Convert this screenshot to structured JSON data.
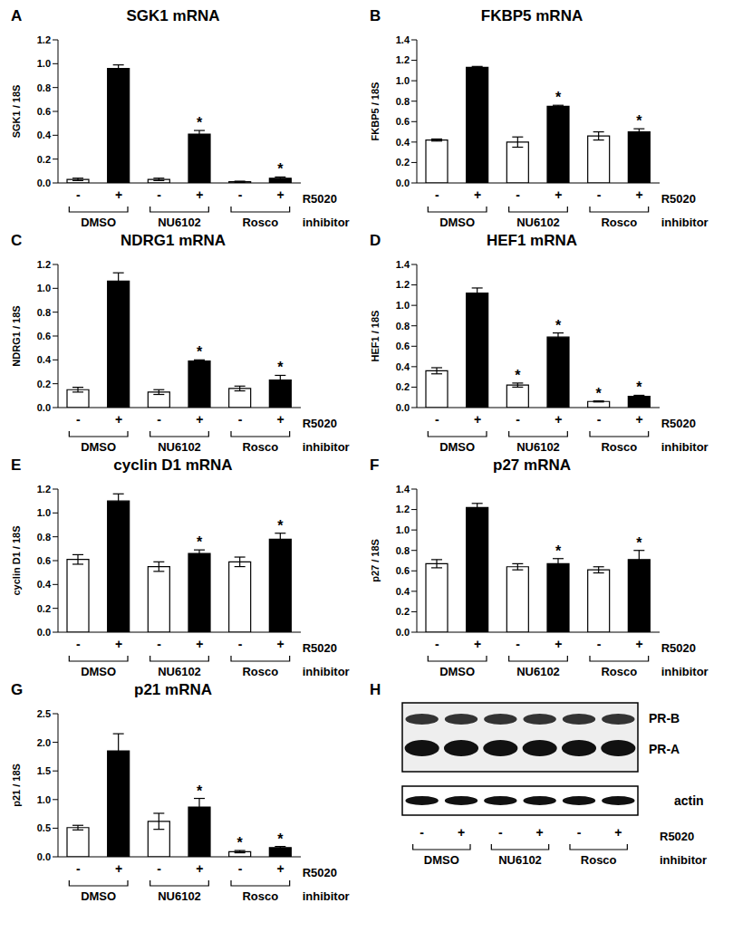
{
  "chart_data": [
    {
      "panel": "A",
      "type": "bar",
      "title": "SGK1 mRNA",
      "ylabel": "SGK1 / 18S",
      "categories": [
        "-",
        "+",
        "-",
        "+",
        "-",
        "+"
      ],
      "groups": [
        "DMSO",
        "NU6102",
        "Rosco"
      ],
      "row_labels": [
        "R5020",
        "inhibitor"
      ],
      "values": [
        0.03,
        0.96,
        0.03,
        0.41,
        0.01,
        0.04
      ],
      "errors": [
        0.01,
        0.03,
        0.01,
        0.03,
        0.005,
        0.01
      ],
      "annotations": [
        null,
        null,
        null,
        "*",
        null,
        "*"
      ],
      "colors": [
        "#ffffff",
        "#000000",
        "#ffffff",
        "#000000",
        "#ffffff",
        "#000000"
      ],
      "ylim": [
        0,
        1.2
      ],
      "yticks": [
        {
          "value": 0,
          "label": "0.0"
        },
        0.2,
        0.4,
        0.6,
        0.8,
        {
          "value": 1,
          "label": "1.0"
        },
        1.2
      ],
      "grid": false
    },
    {
      "panel": "B",
      "type": "bar",
      "title": "FKBP5 mRNA",
      "ylabel": "FKBP5 / 18S",
      "categories": [
        "-",
        "+",
        "-",
        "+",
        "-",
        "+"
      ],
      "groups": [
        "DMSO",
        "NU6102",
        "Rosco"
      ],
      "row_labels": [
        "R5020",
        "inhibitor"
      ],
      "values": [
        0.42,
        1.13,
        0.4,
        0.75,
        0.46,
        0.5
      ],
      "errors": [
        0.01,
        0.01,
        0.05,
        0.01,
        0.04,
        0.03
      ],
      "annotations": [
        null,
        null,
        null,
        "*",
        null,
        "*"
      ],
      "colors": [
        "#ffffff",
        "#000000",
        "#ffffff",
        "#000000",
        "#ffffff",
        "#000000"
      ],
      "ylim": [
        0,
        1.4
      ],
      "yticks": [
        {
          "value": 0,
          "label": "0.0"
        },
        0.2,
        0.4,
        0.6,
        0.8,
        {
          "value": 1,
          "label": "1.0"
        },
        1.2,
        1.4
      ],
      "grid": false
    },
    {
      "panel": "C",
      "type": "bar",
      "title": "NDRG1 mRNA",
      "ylabel": "NDRG1 / 18S",
      "categories": [
        "-",
        "+",
        "-",
        "+",
        "-",
        "+"
      ],
      "groups": [
        "DMSO",
        "NU6102",
        "Rosco"
      ],
      "row_labels": [
        "R5020",
        "inhibitor"
      ],
      "values": [
        0.15,
        1.06,
        0.13,
        0.39,
        0.16,
        0.23
      ],
      "errors": [
        0.02,
        0.07,
        0.02,
        0.01,
        0.02,
        0.04
      ],
      "annotations": [
        null,
        null,
        null,
        "*",
        null,
        "*"
      ],
      "colors": [
        "#ffffff",
        "#000000",
        "#ffffff",
        "#000000",
        "#ffffff",
        "#000000"
      ],
      "ylim": [
        0,
        1.2
      ],
      "yticks": [
        {
          "value": 0,
          "label": "0.0"
        },
        0.2,
        0.4,
        0.6,
        0.8,
        {
          "value": 1,
          "label": "1.0"
        },
        1.2
      ],
      "grid": false
    },
    {
      "panel": "D",
      "type": "bar",
      "title": "HEF1 mRNA",
      "ylabel": "HEF1 / 18S",
      "categories": [
        "-",
        "+",
        "-",
        "+",
        "-",
        "+"
      ],
      "groups": [
        "DMSO",
        "NU6102",
        "Rosco"
      ],
      "row_labels": [
        "R5020",
        "inhibitor"
      ],
      "values": [
        0.36,
        1.12,
        0.22,
        0.69,
        0.06,
        0.11
      ],
      "errors": [
        0.03,
        0.05,
        0.02,
        0.04,
        0.005,
        0.01
      ],
      "annotations": [
        null,
        null,
        "*",
        "*",
        "*",
        "*"
      ],
      "colors": [
        "#ffffff",
        "#000000",
        "#ffffff",
        "#000000",
        "#ffffff",
        "#000000"
      ],
      "ylim": [
        0,
        1.4
      ],
      "yticks": [
        {
          "value": 0,
          "label": "0.0"
        },
        0.2,
        0.4,
        0.6,
        0.8,
        {
          "value": 1,
          "label": "1.0"
        },
        1.2,
        1.4
      ],
      "grid": false
    },
    {
      "panel": "E",
      "type": "bar",
      "title": "cyclin D1 mRNA",
      "ylabel": "cyclin D1 / 18S",
      "categories": [
        "-",
        "+",
        "-",
        "+",
        "-",
        "+"
      ],
      "groups": [
        "DMSO",
        "NU6102",
        "Rosco"
      ],
      "row_labels": [
        "R5020",
        "inhibitor"
      ],
      "values": [
        0.61,
        1.1,
        0.55,
        0.66,
        0.59,
        0.78
      ],
      "errors": [
        0.04,
        0.06,
        0.04,
        0.03,
        0.04,
        0.05
      ],
      "annotations": [
        null,
        null,
        null,
        "*",
        null,
        "*"
      ],
      "colors": [
        "#ffffff",
        "#000000",
        "#ffffff",
        "#000000",
        "#ffffff",
        "#000000"
      ],
      "ylim": [
        0,
        1.2
      ],
      "yticks": [
        {
          "value": 0,
          "label": "0.0"
        },
        0.2,
        0.4,
        0.6,
        0.8,
        {
          "value": 1,
          "label": "1.0"
        },
        1.2
      ],
      "grid": false
    },
    {
      "panel": "F",
      "type": "bar",
      "title": "p27 mRNA",
      "ylabel": "p27 / 18S",
      "categories": [
        "-",
        "+",
        "-",
        "+",
        "-",
        "+"
      ],
      "groups": [
        "DMSO",
        "NU6102",
        "Rosco"
      ],
      "row_labels": [
        "R5020",
        "inhibitor"
      ],
      "values": [
        0.67,
        1.22,
        0.64,
        0.67,
        0.61,
        0.71
      ],
      "errors": [
        0.04,
        0.04,
        0.03,
        0.05,
        0.03,
        0.09
      ],
      "annotations": [
        null,
        null,
        null,
        "*",
        null,
        "*"
      ],
      "colors": [
        "#ffffff",
        "#000000",
        "#ffffff",
        "#000000",
        "#ffffff",
        "#000000"
      ],
      "ylim": [
        0,
        1.4
      ],
      "yticks": [
        {
          "value": 0,
          "label": "0.0"
        },
        0.2,
        0.4,
        0.6,
        0.8,
        {
          "value": 1,
          "label": "1.0"
        },
        1.2,
        1.4
      ],
      "grid": false
    },
    {
      "panel": "G",
      "type": "bar",
      "title": "p21 mRNA",
      "ylabel": "p21 / 18S",
      "categories": [
        "-",
        "+",
        "-",
        "+",
        "-",
        "+"
      ],
      "groups": [
        "DMSO",
        "NU6102",
        "Rosco"
      ],
      "row_labels": [
        "R5020",
        "inhibitor"
      ],
      "values": [
        0.51,
        1.85,
        0.62,
        0.87,
        0.09,
        0.16
      ],
      "errors": [
        0.04,
        0.3,
        0.14,
        0.15,
        0.02,
        0.02
      ],
      "annotations": [
        null,
        null,
        null,
        "*",
        "*",
        "*"
      ],
      "colors": [
        "#ffffff",
        "#000000",
        "#ffffff",
        "#000000",
        "#ffffff",
        "#000000"
      ],
      "ylim": [
        0,
        2.5
      ],
      "yticks": [
        {
          "value": 0,
          "label": "0.0"
        },
        0.5,
        {
          "value": 1,
          "label": "1.0"
        },
        1.5,
        {
          "value": 2,
          "label": "2.0"
        },
        2.5
      ],
      "grid": false
    },
    {
      "panel": "H",
      "type": "blot",
      "bands": [
        "PR-B",
        "PR-A"
      ],
      "loading_control": "actin",
      "categories": [
        "-",
        "+",
        "-",
        "+",
        "-",
        "+"
      ],
      "groups": [
        "DMSO",
        "NU6102",
        "Rosco"
      ],
      "row_labels": [
        "R5020",
        "inhibitor"
      ]
    }
  ]
}
